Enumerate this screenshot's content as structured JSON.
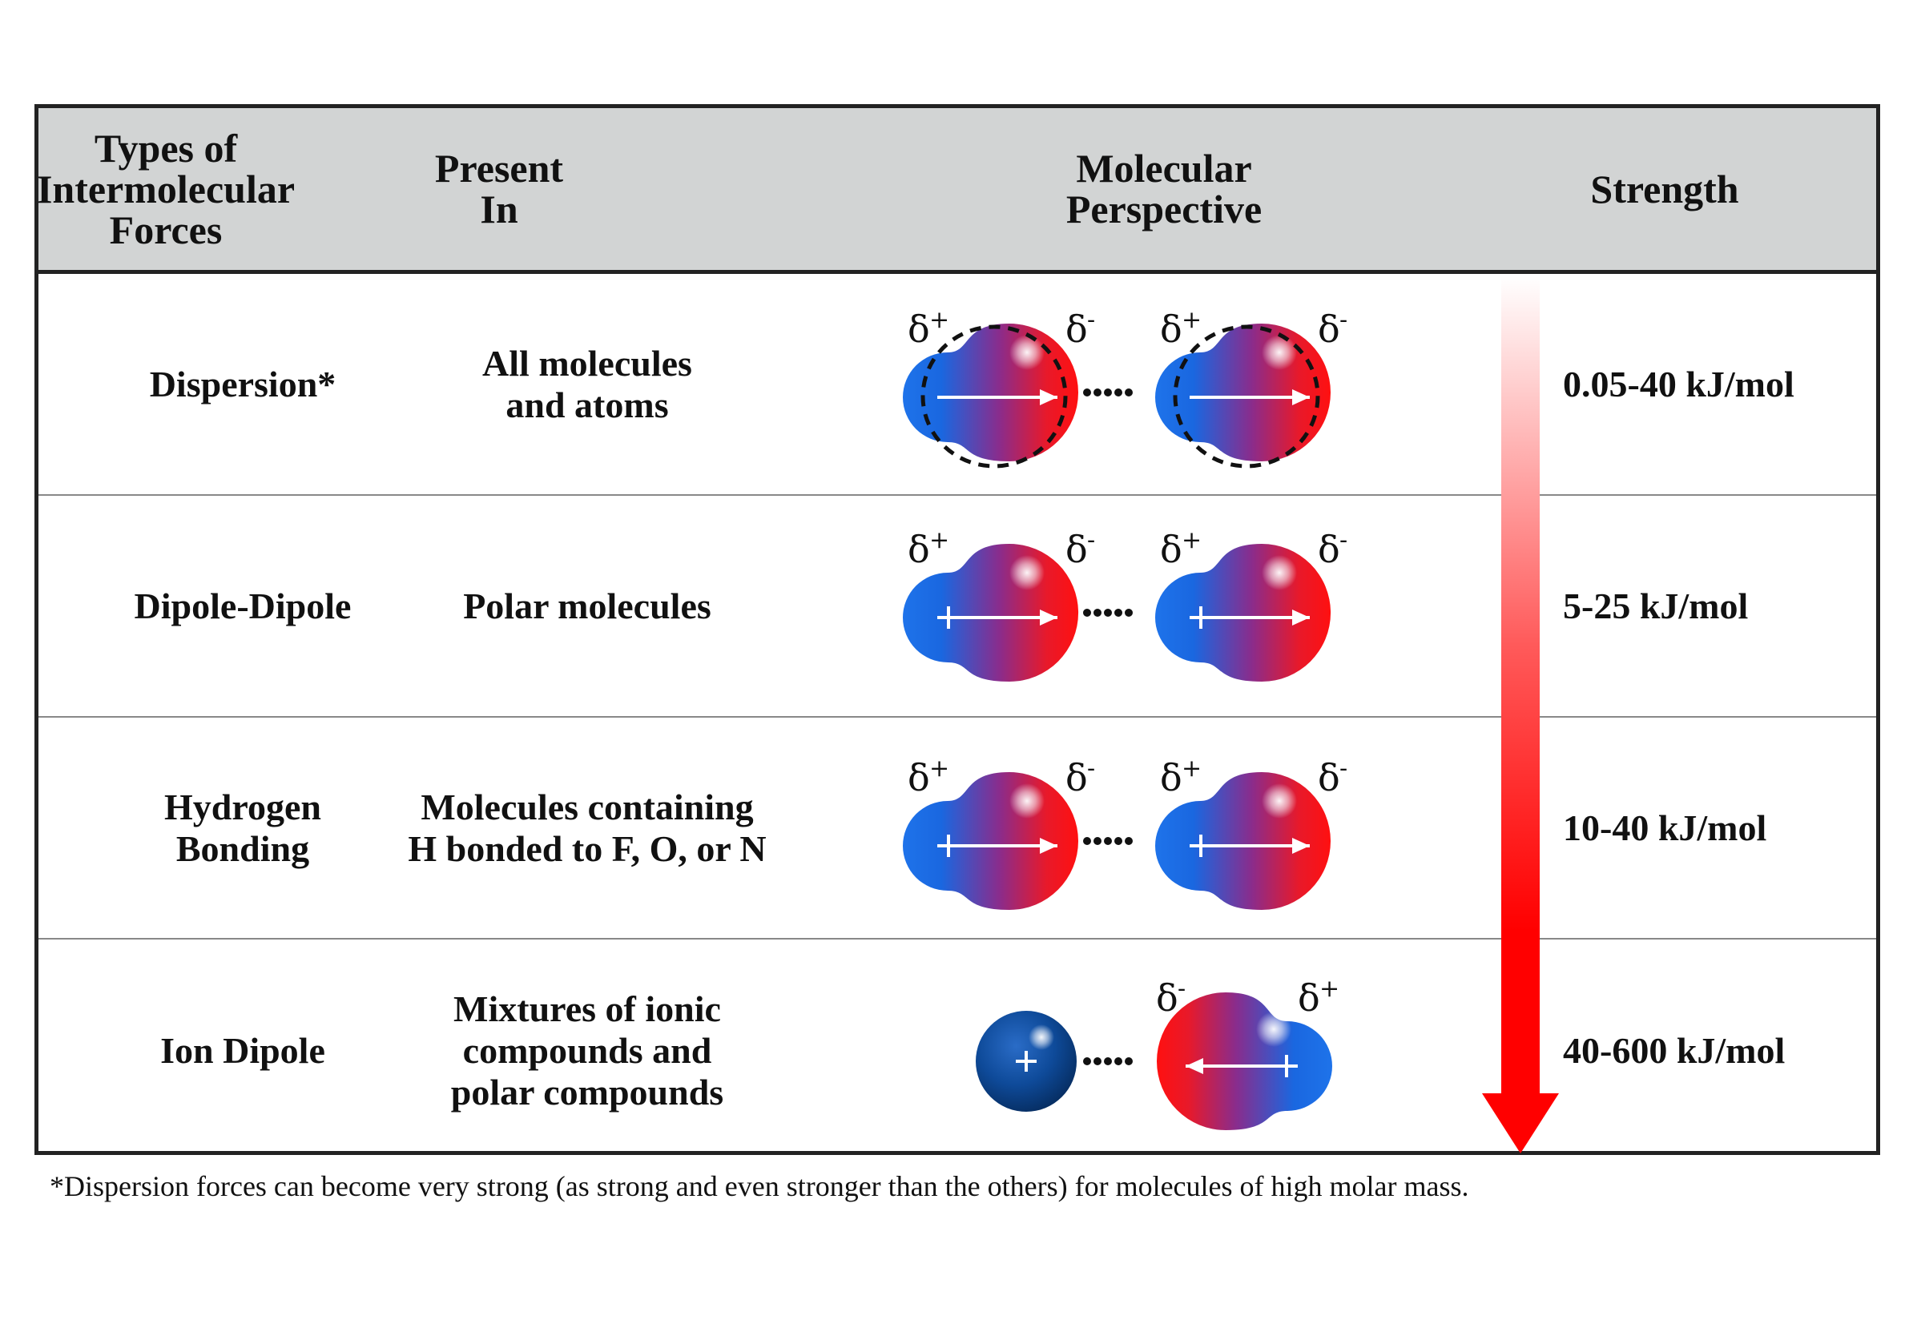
{
  "header": {
    "types": "Types of\nIntermolecular\nForces",
    "present": "Present\nIn",
    "perspective": "Molecular\nPerspective",
    "strength": "Strength"
  },
  "rows": [
    {
      "type": "Dispersion*",
      "present": "All molecules\nand atoms",
      "strength": "0.05-40 kJ/mol"
    },
    {
      "type": "Dipole-Dipole",
      "present": "Polar molecules",
      "strength": "5-25 kJ/mol"
    },
    {
      "type": "Hydrogen\nBonding",
      "present": "Molecules containing\nH bonded to F, O, or N",
      "strength": "10-40 kJ/mol"
    },
    {
      "type": "Ion Dipole",
      "present": "Mixtures of ionic\ncompounds and\npolar compounds",
      "strength": "40-600 kJ/mol"
    }
  ],
  "labels": {
    "delta": "δ",
    "plus": "+",
    "minus": "-"
  },
  "footnote": "*Dispersion forces can become very strong (as strong and even stronger than the others) for molecules of high molar mass.",
  "colors": {
    "header_bg": "#d2d4d4",
    "positive_blue": "#1a6fe6",
    "negative_red": "#ee1111",
    "ion_blue": "#0b3f86",
    "arrow_red": "#ff0000"
  }
}
